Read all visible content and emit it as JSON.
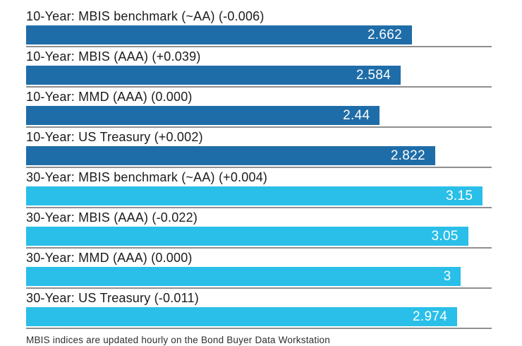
{
  "chart": {
    "axis_max": 3.212,
    "colors": {
      "ten_year": "#1f6da8",
      "thirty_year": "#29bfe8",
      "separator": "#8f8f8f"
    },
    "rows": [
      {
        "label": "10-Year: MBIS benchmark (~AA) (-0.006)",
        "value": 2.662,
        "display": "2.662",
        "group": "ten_year"
      },
      {
        "label": "10-Year: MBIS (AAA) (+0.039)",
        "value": 2.584,
        "display": "2.584",
        "group": "ten_year"
      },
      {
        "label": "10-Year: MMD (AAA) (0.000)",
        "value": 2.44,
        "display": "2.44",
        "group": "ten_year"
      },
      {
        "label": "10-Year: US Treasury (+0.002)",
        "value": 2.822,
        "display": "2.822",
        "group": "ten_year"
      },
      {
        "label": "30-Year: MBIS benchmark (~AA) (+0.004)",
        "value": 3.15,
        "display": "3.15",
        "group": "thirty_year"
      },
      {
        "label": "30-Year: MBIS (AAA) (-0.022)",
        "value": 3.05,
        "display": "3.05",
        "group": "thirty_year"
      },
      {
        "label": "30-Year: MMD (AAA) (0.000)",
        "value": 3,
        "display": "3",
        "group": "thirty_year"
      },
      {
        "label": "30-Year: US Treasury (-0.011)",
        "value": 2.974,
        "display": "2.974",
        "group": "thirty_year"
      }
    ]
  },
  "footer": {
    "note": "MBIS indices are updated hourly on the Bond Buyer Data Workstation"
  },
  "chart_data": {
    "type": "bar",
    "orientation": "horizontal",
    "categories": [
      "10-Year: MBIS benchmark (~AA) (-0.006)",
      "10-Year: MBIS (AAA) (+0.039)",
      "10-Year: MMD (AAA) (0.000)",
      "10-Year: US Treasury (+0.002)",
      "30-Year: MBIS benchmark (~AA) (+0.004)",
      "30-Year: MBIS (AAA) (-0.022)",
      "30-Year: MMD (AAA) (0.000)",
      "30-Year: US Treasury (-0.011)"
    ],
    "values": [
      2.662,
      2.584,
      2.44,
      2.822,
      3.15,
      3.05,
      3,
      2.974
    ],
    "changes": [
      -0.006,
      0.039,
      0.0,
      0.002,
      0.004,
      -0.022,
      0.0,
      -0.011
    ],
    "bar_colors": [
      "#1f6da8",
      "#1f6da8",
      "#1f6da8",
      "#1f6da8",
      "#29bfe8",
      "#29bfe8",
      "#29bfe8",
      "#29bfe8"
    ],
    "title": "",
    "xlabel": "",
    "ylabel": "",
    "xlim": [
      0,
      3.21
    ],
    "grid": false,
    "legend": false,
    "data_labels": [
      "2.662",
      "2.584",
      "2.44",
      "2.822",
      "3.15",
      "3.05",
      "3",
      "2.974"
    ],
    "annotations": [
      "MBIS indices are updated hourly on the Bond Buyer Data Workstation"
    ]
  }
}
